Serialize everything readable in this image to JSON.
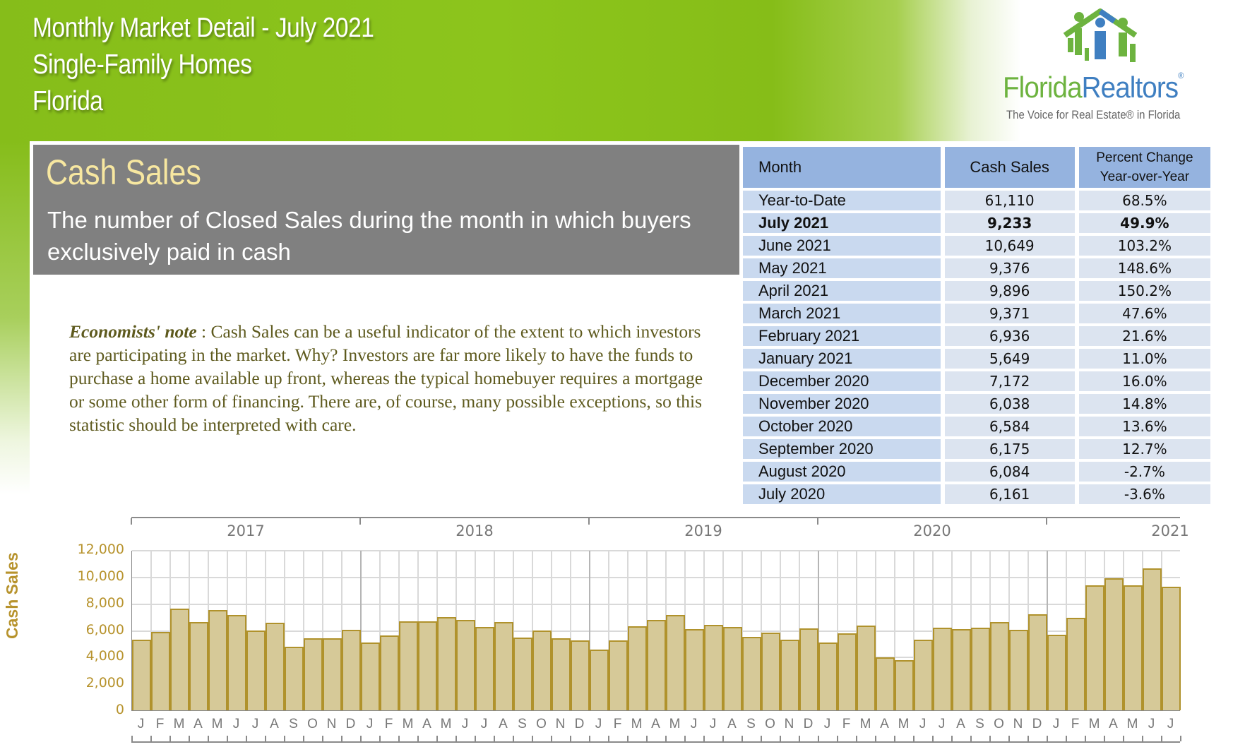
{
  "header": {
    "title_line1": "Monthly Market Detail - July 2021",
    "title_line2": "Single-Family Homes",
    "title_line3": "Florida"
  },
  "logo": {
    "name_part1": "Florida",
    "name_part2": "Realtors",
    "registered": "®",
    "tagline": "The Voice for Real Estate® in Florida",
    "icon": "house-people-icon"
  },
  "panel": {
    "title": "Cash Sales",
    "description": "The number of Closed Sales during the month in which buyers exclusively paid in cash"
  },
  "note": {
    "label": "Economists' note",
    "separator": " :  ",
    "text": "Cash Sales can be a useful indicator of the extent to which investors are participating in the market.  Why?  Investors are far more likely to have the funds to purchase a home available up front, whereas the typical homebuyer requires a mortgage or some other form of financing.  There are, of course, many possible exceptions, so this statistic should be interpreted with care."
  },
  "table": {
    "headers": {
      "month": "Month",
      "cash_sales": "Cash Sales",
      "pct_line1": "Percent Change",
      "pct_line2": "Year-over-Year"
    },
    "rows": [
      {
        "month": "Year-to-Date",
        "cash_sales": "61,110",
        "pct": "68.5%",
        "bold": false
      },
      {
        "month": "July 2021",
        "cash_sales": "9,233",
        "pct": "49.9%",
        "bold": true
      },
      {
        "month": "June 2021",
        "cash_sales": "10,649",
        "pct": "103.2%",
        "bold": false
      },
      {
        "month": "May 2021",
        "cash_sales": "9,376",
        "pct": "148.6%",
        "bold": false
      },
      {
        "month": "April 2021",
        "cash_sales": "9,896",
        "pct": "150.2%",
        "bold": false
      },
      {
        "month": "March 2021",
        "cash_sales": "9,371",
        "pct": "47.6%",
        "bold": false
      },
      {
        "month": "February 2021",
        "cash_sales": "6,936",
        "pct": "21.6%",
        "bold": false
      },
      {
        "month": "January 2021",
        "cash_sales": "5,649",
        "pct": "11.0%",
        "bold": false
      },
      {
        "month": "December 2020",
        "cash_sales": "7,172",
        "pct": "16.0%",
        "bold": false
      },
      {
        "month": "November 2020",
        "cash_sales": "6,038",
        "pct": "14.8%",
        "bold": false
      },
      {
        "month": "October 2020",
        "cash_sales": "6,584",
        "pct": "13.6%",
        "bold": false
      },
      {
        "month": "September 2020",
        "cash_sales": "6,175",
        "pct": "12.7%",
        "bold": false
      },
      {
        "month": "August 2020",
        "cash_sales": "6,084",
        "pct": "-2.7%",
        "bold": false
      },
      {
        "month": "July 2020",
        "cash_sales": "6,161",
        "pct": "-3.6%",
        "bold": false
      }
    ]
  },
  "colors": {
    "header_green": "#86bd1a",
    "panel_gray": "#808080",
    "panel_title": "#f7e7a0",
    "note_text": "#5e5a1e",
    "table_header": "#95b3df",
    "table_month_cell": "#c9d9ef",
    "table_value_cell": "#dce4f0",
    "bar_fill": "#d6c998",
    "bar_border": "#b0922c",
    "axis_label": "#b7932d"
  },
  "chart_data": {
    "type": "bar",
    "title": "",
    "xlabel": "",
    "ylabel": "Cash Sales",
    "ylim": [
      0,
      12000
    ],
    "yticks": [
      "0",
      "2,000",
      "4,000",
      "6,000",
      "8,000",
      "10,000",
      "12,000"
    ],
    "grid": true,
    "legend": "none",
    "year_groups": [
      "2017",
      "2018",
      "2019",
      "2020",
      "2021"
    ],
    "month_labels": [
      "J",
      "F",
      "M",
      "A",
      "M",
      "J",
      "J",
      "A",
      "S",
      "O",
      "N",
      "D"
    ],
    "categories": [
      "Jan 2017",
      "Feb 2017",
      "Mar 2017",
      "Apr 2017",
      "May 2017",
      "Jun 2017",
      "Jul 2017",
      "Aug 2017",
      "Sep 2017",
      "Oct 2017",
      "Nov 2017",
      "Dec 2017",
      "Jan 2018",
      "Feb 2018",
      "Mar 2018",
      "Apr 2018",
      "May 2018",
      "Jun 2018",
      "Jul 2018",
      "Aug 2018",
      "Sep 2018",
      "Oct 2018",
      "Nov 2018",
      "Dec 2018",
      "Jan 2019",
      "Feb 2019",
      "Mar 2019",
      "Apr 2019",
      "May 2019",
      "Jun 2019",
      "Jul 2019",
      "Aug 2019",
      "Sep 2019",
      "Oct 2019",
      "Nov 2019",
      "Dec 2019",
      "Jan 2020",
      "Feb 2020",
      "Mar 2020",
      "Apr 2020",
      "May 2020",
      "Jun 2020",
      "Jul 2020",
      "Aug 2020",
      "Sep 2020",
      "Oct 2020",
      "Nov 2020",
      "Dec 2020",
      "Jan 2021",
      "Feb 2021",
      "Mar 2021",
      "Apr 2021",
      "May 2021",
      "Jun 2021",
      "Jul 2021"
    ],
    "values": [
      5300,
      5850,
      7600,
      6600,
      7500,
      7150,
      6000,
      6550,
      4750,
      5400,
      5400,
      6050,
      5050,
      5600,
      6650,
      6650,
      7000,
      6750,
      6250,
      6600,
      5450,
      6000,
      5400,
      5250,
      4550,
      5250,
      6300,
      6750,
      7150,
      6100,
      6400,
      6250,
      5500,
      5800,
      5300,
      6150,
      5100,
      5750,
      6350,
      3950,
      3750,
      5300,
      6161,
      6084,
      6175,
      6584,
      6038,
      7172,
      5649,
      6936,
      9371,
      9896,
      9376,
      10649,
      9233
    ]
  }
}
